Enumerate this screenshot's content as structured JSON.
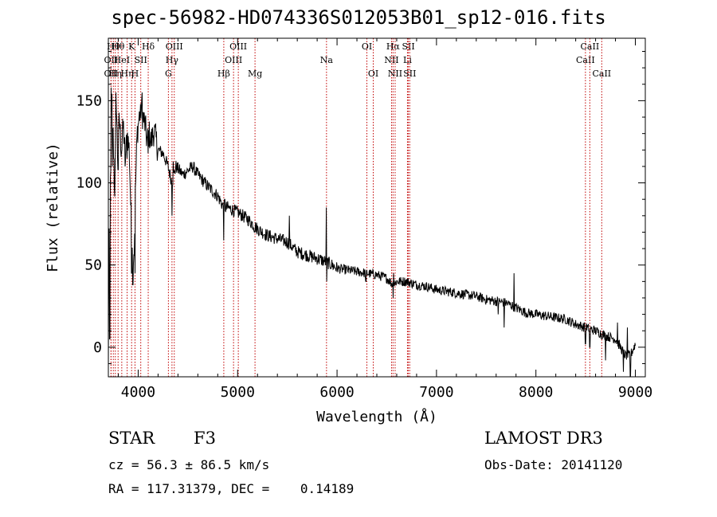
{
  "chart_data": {
    "type": "line",
    "title": "spec-56982-HD074336S012053B01_sp12-016.fits",
    "xlabel": "Wavelength (Å)",
    "ylabel": "Flux (relative)",
    "xlim": [
      3700,
      9100
    ],
    "ylim": [
      -18,
      188
    ],
    "xticks": [
      4000,
      5000,
      6000,
      7000,
      8000,
      9000
    ],
    "yticks": [
      0,
      50,
      100,
      150
    ],
    "anchors": [
      [
        3700,
        15
      ],
      [
        3710,
        60
      ],
      [
        3720,
        100
      ],
      [
        3735,
        150
      ],
      [
        3750,
        125
      ],
      [
        3765,
        95
      ],
      [
        3780,
        150
      ],
      [
        3795,
        110
      ],
      [
        3810,
        140
      ],
      [
        3830,
        120
      ],
      [
        3850,
        135
      ],
      [
        3870,
        115
      ],
      [
        3890,
        130
      ],
      [
        3910,
        120
      ],
      [
        3930,
        75
      ],
      [
        3945,
        60
      ],
      [
        3960,
        60
      ],
      [
        3975,
        100
      ],
      [
        3990,
        130
      ],
      [
        4010,
        140
      ],
      [
        4030,
        145
      ],
      [
        4050,
        140
      ],
      [
        4070,
        135
      ],
      [
        4090,
        125
      ],
      [
        4110,
        130
      ],
      [
        4130,
        125
      ],
      [
        4160,
        132
      ],
      [
        4200,
        120
      ],
      [
        4250,
        118
      ],
      [
        4300,
        110
      ],
      [
        4340,
        100
      ],
      [
        4380,
        110
      ],
      [
        4450,
        105
      ],
      [
        4550,
        110
      ],
      [
        4600,
        105
      ],
      [
        4700,
        98
      ],
      [
        4800,
        92
      ],
      [
        4860,
        85
      ],
      [
        4900,
        85
      ],
      [
        5000,
        82
      ],
      [
        5100,
        78
      ],
      [
        5200,
        72
      ],
      [
        5300,
        68
      ],
      [
        5400,
        66
      ],
      [
        5500,
        64
      ],
      [
        5600,
        58
      ],
      [
        5700,
        56
      ],
      [
        5800,
        54
      ],
      [
        5890,
        52
      ],
      [
        5950,
        50
      ],
      [
        6000,
        48
      ],
      [
        6100,
        47
      ],
      [
        6200,
        46
      ],
      [
        6300,
        45
      ],
      [
        6400,
        44
      ],
      [
        6500,
        42
      ],
      [
        6563,
        38
      ],
      [
        6600,
        40
      ],
      [
        6700,
        40
      ],
      [
        6800,
        38
      ],
      [
        6900,
        37
      ],
      [
        7000,
        35
      ],
      [
        7100,
        34
      ],
      [
        7200,
        33
      ],
      [
        7300,
        32
      ],
      [
        7400,
        31
      ],
      [
        7500,
        29
      ],
      [
        7600,
        28
      ],
      [
        7700,
        27
      ],
      [
        7800,
        24
      ],
      [
        7900,
        21
      ],
      [
        8000,
        20
      ],
      [
        8100,
        19
      ],
      [
        8200,
        18
      ],
      [
        8300,
        17
      ],
      [
        8400,
        14
      ],
      [
        8500,
        12
      ],
      [
        8600,
        10
      ],
      [
        8700,
        7
      ],
      [
        8800,
        5
      ],
      [
        8850,
        0
      ],
      [
        8900,
        -5
      ],
      [
        8950,
        -5
      ],
      [
        9000,
        2
      ]
    ],
    "spikes": [
      [
        3702,
        -15
      ],
      [
        3706,
        72
      ],
      [
        3714,
        5
      ],
      [
        3728,
        158
      ],
      [
        3741,
        110
      ],
      [
        3760,
        96
      ],
      [
        3775,
        155
      ],
      [
        3798,
        108
      ],
      [
        3835,
        120
      ],
      [
        3868,
        110
      ],
      [
        3889,
        115
      ],
      [
        3934,
        45
      ],
      [
        3946,
        38
      ],
      [
        3968,
        45
      ],
      [
        4025,
        148
      ],
      [
        4040,
        155
      ],
      [
        4101,
        118
      ],
      [
        4340,
        80
      ],
      [
        4352,
        113
      ],
      [
        4861,
        65
      ],
      [
        4870,
        90
      ],
      [
        5170,
        70
      ],
      [
        5520,
        80
      ],
      [
        5894,
        40
      ],
      [
        5893,
        85
      ],
      [
        6290,
        40
      ],
      [
        6563,
        30
      ],
      [
        6568,
        45
      ],
      [
        7780,
        45
      ],
      [
        7620,
        20
      ],
      [
        7680,
        12
      ],
      [
        8498,
        2
      ],
      [
        8542,
        0
      ],
      [
        8662,
        5
      ],
      [
        8700,
        -8
      ],
      [
        8820,
        15
      ],
      [
        8880,
        -15
      ],
      [
        8920,
        12
      ],
      [
        8950,
        -18
      ]
    ],
    "series": [
      {
        "name": "flux",
        "color": "#000000"
      }
    ],
    "lines_color": "#c00000",
    "lines": [
      {
        "wavelength": 3727,
        "label": "OII",
        "row": 2
      },
      {
        "wavelength": 3727,
        "label": "OII",
        "row": 3
      },
      {
        "wavelength": 3750,
        "label": "Hθ",
        "row": 1
      },
      {
        "wavelength": 3770,
        "label": "Hη",
        "row": 3
      },
      {
        "wavelength": 3798,
        "label": "Hθ",
        "row": 1
      },
      {
        "wavelength": 3835,
        "label": "HeI",
        "row": 2
      },
      {
        "wavelength": 3889,
        "label": "Hη",
        "row": 3
      },
      {
        "wavelength": 3934,
        "label": "K",
        "row": 1
      },
      {
        "wavelength": 3968,
        "label": "H",
        "row": 3
      },
      {
        "wavelength": 4026,
        "label": "SII",
        "row": 2
      },
      {
        "wavelength": 4101,
        "label": "Hδ",
        "row": 1
      },
      {
        "wavelength": 4304,
        "label": "G",
        "row": 3
      },
      {
        "wavelength": 4340,
        "label": "Hγ",
        "row": 2
      },
      {
        "wavelength": 4363,
        "label": "OIII",
        "row": 1
      },
      {
        "wavelength": 4861,
        "label": "Hβ",
        "row": 3
      },
      {
        "wavelength": 4959,
        "label": "OIII",
        "row": 2
      },
      {
        "wavelength": 5007,
        "label": "OIII",
        "row": 1
      },
      {
        "wavelength": 5175,
        "label": "Mg",
        "row": 3
      },
      {
        "wavelength": 5894,
        "label": "Na",
        "row": 2
      },
      {
        "wavelength": 6300,
        "label": "OI",
        "row": 1
      },
      {
        "wavelength": 6364,
        "label": "OI",
        "row": 3
      },
      {
        "wavelength": 6548,
        "label": "NII",
        "row": 2
      },
      {
        "wavelength": 6563,
        "label": "Hα",
        "row": 1
      },
      {
        "wavelength": 6584,
        "label": "NII",
        "row": 3
      },
      {
        "wavelength": 6708,
        "label": "Li",
        "row": 2
      },
      {
        "wavelength": 6717,
        "label": "SII",
        "row": 1
      },
      {
        "wavelength": 6731,
        "label": "SII",
        "row": 3
      },
      {
        "wavelength": 8498,
        "label": "CaII",
        "row": 2
      },
      {
        "wavelength": 8542,
        "label": "CaII",
        "row": 1
      },
      {
        "wavelength": 8662,
        "label": "CaII",
        "row": 3
      }
    ]
  },
  "info": {
    "class_type": "STAR",
    "subclass": "F3",
    "survey": "LAMOST DR3",
    "cz": "cz = 56.3 ± 86.5 km/s",
    "obs_date": "Obs-Date: 20141120",
    "radec": "RA = 117.31379, DEC =    0.14189"
  }
}
